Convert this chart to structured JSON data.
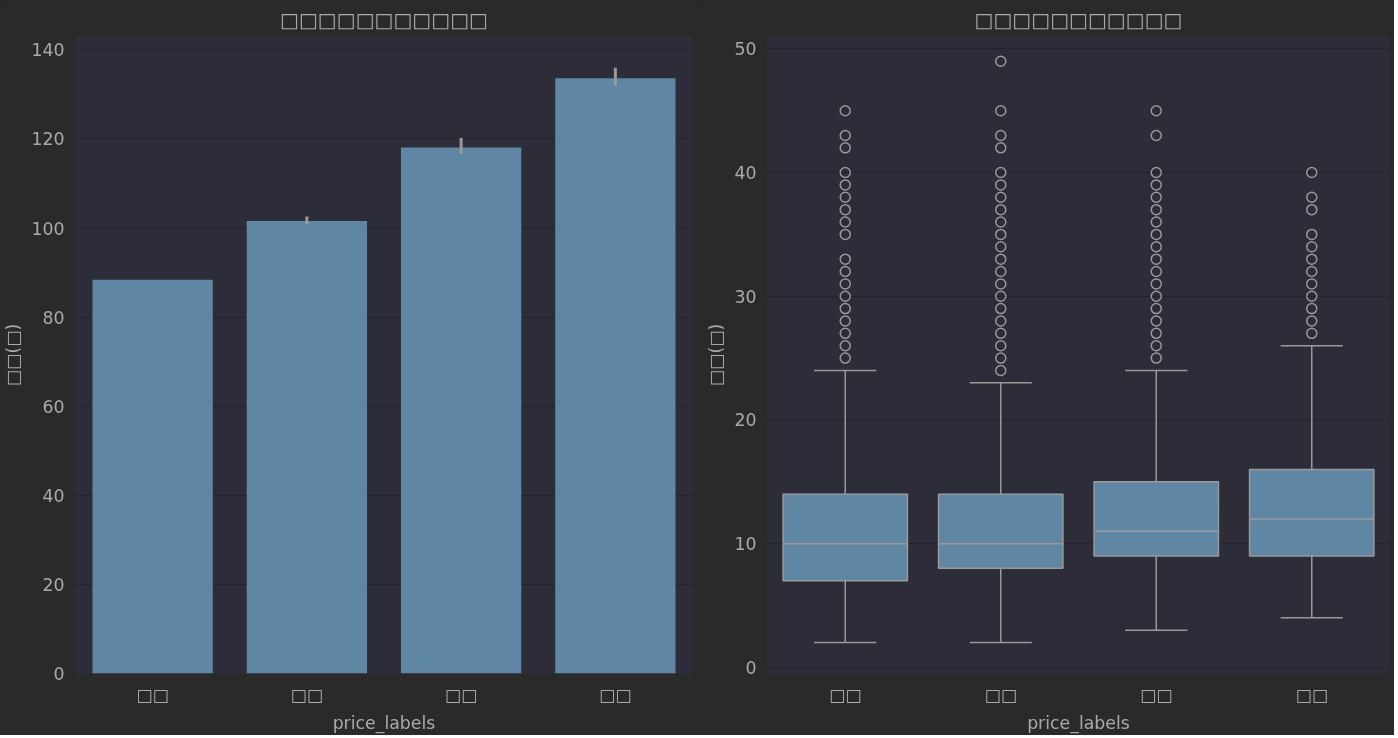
{
  "chart_data": [
    {
      "type": "bar",
      "title": "□□□□□□□□□□□",
      "xlabel": "price_labels",
      "ylabel": "□□(□)",
      "categories": [
        "□□",
        "□□",
        "□□",
        "□□"
      ],
      "values": [
        88.4,
        101.6,
        118.1,
        133.6
      ],
      "color": "#5f87a3",
      "errors": [
        null,
        [
          100.8,
          102.6
        ],
        [
          116.7,
          120.2
        ],
        [
          131.9,
          136.0
        ]
      ],
      "ylim": [
        0,
        143
      ],
      "yticks": [
        0,
        20,
        40,
        60,
        80,
        100,
        120,
        140
      ],
      "grid": "y"
    },
    {
      "type": "box",
      "title": "□□□□□□□□□□□",
      "xlabel": "price_labels",
      "ylabel": "□□(□)",
      "categories": [
        "□□",
        "□□",
        "□□",
        "□□"
      ],
      "color": "#5f87a3",
      "ylim": [
        -0.5,
        51
      ],
      "yticks": [
        0,
        10,
        20,
        30,
        40,
        50
      ],
      "grid": "y",
      "boxes": [
        {
          "low": 2,
          "q1": 7,
          "median": 10,
          "q3": 14,
          "high": 24,
          "outliers": [
            25,
            26,
            27,
            28,
            29,
            30,
            31,
            32,
            33,
            35,
            36,
            37,
            38,
            39,
            40,
            42,
            43,
            45
          ]
        },
        {
          "low": 2,
          "q1": 8,
          "median": 10,
          "q3": 14,
          "high": 23,
          "outliers": [
            24,
            25,
            26,
            27,
            28,
            29,
            30,
            31,
            32,
            33,
            34,
            35,
            36,
            37,
            38,
            39,
            40,
            42,
            43,
            45,
            49
          ]
        },
        {
          "low": 3,
          "q1": 9,
          "median": 11,
          "q3": 15,
          "high": 24,
          "outliers": [
            25,
            26,
            27,
            28,
            29,
            30,
            31,
            32,
            33,
            34,
            35,
            36,
            37,
            38,
            39,
            40,
            43,
            45
          ]
        },
        {
          "low": 4,
          "q1": 9,
          "median": 12,
          "q3": 16,
          "high": 26,
          "outliers": [
            27,
            28,
            29,
            30,
            31,
            32,
            33,
            34,
            35,
            37,
            38,
            40
          ]
        }
      ]
    }
  ]
}
